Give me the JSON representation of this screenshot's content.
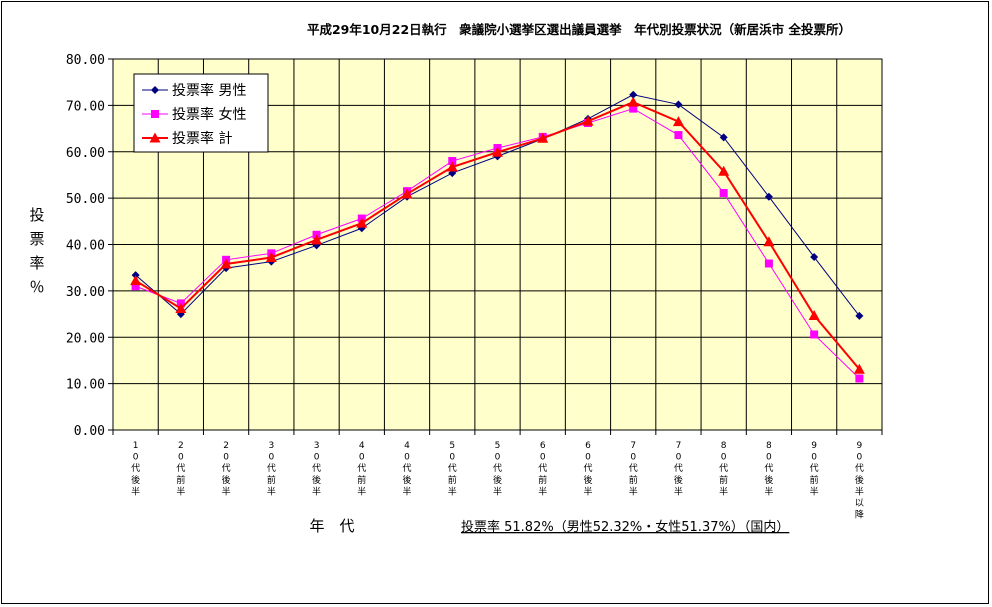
{
  "chart_data": {
    "type": "line",
    "title": "平成29年10月22日執行　衆議院小選挙区選出議員選挙　年代別投票状況（新居浜市 全投票所）",
    "ylabel": "投票率％",
    "xlabel": "年　代",
    "note": "投票率 51.82%（男性52.32%・女性51.37%）（国内）",
    "ylim": [
      0,
      80
    ],
    "ytick_labels": [
      "0.00",
      "10.00",
      "20.00",
      "30.00",
      "40.00",
      "50.00",
      "60.00",
      "70.00",
      "80.00"
    ],
    "grid": true,
    "legend_position": "top-left",
    "categories": [
      "10代後半",
      "20代前半",
      "20代後半",
      "30代前半",
      "30代後半",
      "40代前半",
      "40代後半",
      "50代前半",
      "50代後半",
      "60代前半",
      "60代後半",
      "70代前半",
      "70代後半",
      "80代前半",
      "80代後半",
      "90代前半",
      "90代後半以降"
    ],
    "series": [
      {
        "name": "投票率 男性",
        "color": "#000080",
        "marker": "diamond",
        "values": [
          33.4,
          25.0,
          34.9,
          36.3,
          39.8,
          43.5,
          50.3,
          55.4,
          59.0,
          62.8,
          67.1,
          72.3,
          70.2,
          63.1,
          50.3,
          37.3,
          24.6
        ]
      },
      {
        "name": "投票率 女性",
        "color": "#ff00ff",
        "marker": "square",
        "values": [
          31.0,
          27.3,
          36.7,
          38.1,
          42.1,
          45.6,
          51.5,
          58.0,
          60.8,
          63.2,
          66.2,
          69.3,
          63.6,
          51.1,
          35.9,
          20.6,
          11.1
        ]
      },
      {
        "name": "投票率 計",
        "color": "#ff0000",
        "marker": "triangle",
        "values": [
          32.2,
          26.2,
          35.8,
          37.2,
          41.0,
          44.6,
          50.9,
          56.7,
          59.9,
          62.9,
          66.6,
          70.7,
          66.5,
          55.8,
          40.6,
          24.7,
          13.1
        ]
      }
    ]
  }
}
